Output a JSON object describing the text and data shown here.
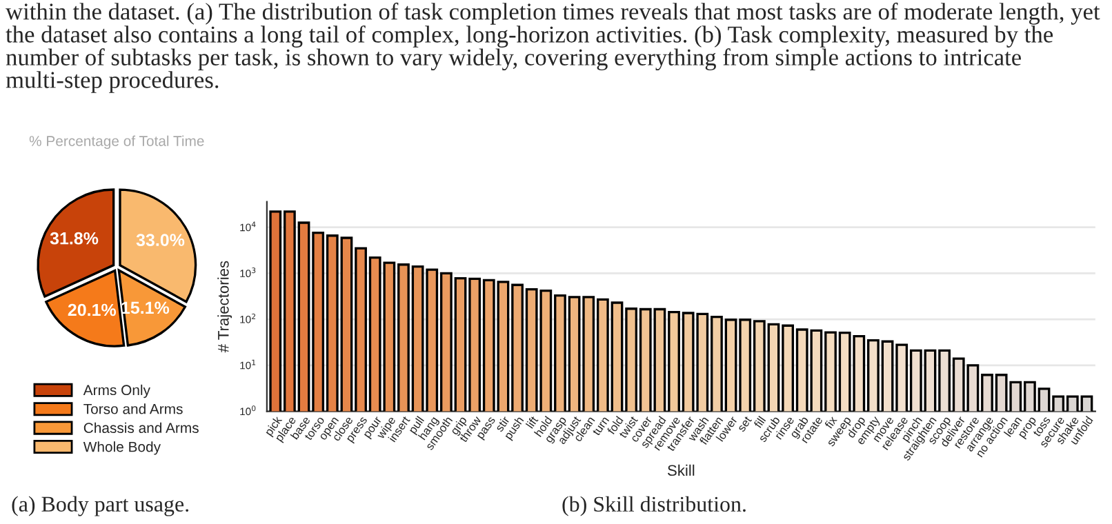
{
  "chart_data": [
    {
      "type": "pie",
      "title": "% Percentage of Total Time",
      "categories": [
        "Arms Only",
        "Torso and Arms",
        "Chassis and Arms",
        "Whole Body"
      ],
      "values": [
        31.8,
        20.1,
        15.1,
        33.0
      ],
      "colors": [
        "#c8430a",
        "#f57a1a",
        "#f89838",
        "#f9b96e"
      ],
      "value_labels": [
        "31.8%",
        "20.1%",
        "15.1%",
        "33.0%"
      ],
      "legend": "bottom",
      "annotations": [
        "within the dataset. (a) The distribution of task completion times reveals that most tasks are of moderate length, yet the dataset also contains a long tail of complex, long-horizon activities. (b) Task complexity, measured by the number of subtasks per task, is shown to vary widely, covering everything from simple actions to intricate multi-step procedures.",
        "(a) Body part usage."
      ]
    },
    {
      "type": "bar",
      "xlabel": "Skill",
      "ylabel": "# Trajectories",
      "log": true,
      "grid": "y",
      "categories": [
        "pick",
        "place",
        "base",
        "torso",
        "open",
        "close",
        "press",
        "pour",
        "wipe",
        "insert",
        "pull",
        "hang",
        "smooth",
        "grip",
        "throw",
        "pass",
        "stir",
        "push",
        "lift",
        "hold",
        "grasp",
        "adjust",
        "clean",
        "turn",
        "fold",
        "twist",
        "cover",
        "spread",
        "remove",
        "transfer",
        "wash",
        "flatten",
        "lower",
        "set",
        "fill",
        "scrub",
        "rinse",
        "grab",
        "rotate",
        "fix",
        "sweep",
        "drop",
        "empty",
        "move",
        "release",
        "pinch",
        "straighten",
        "scoop",
        "deliver",
        "restore",
        "arrange",
        "no action",
        "lean",
        "prop",
        "toss",
        "secure",
        "shake",
        "unfold"
      ],
      "values": [
        22000,
        22000,
        12600,
        7600,
        6600,
        5900,
        3500,
        2200,
        1700,
        1550,
        1400,
        1200,
        1000,
        780,
        760,
        710,
        650,
        560,
        450,
        420,
        330,
        305,
        305,
        270,
        230,
        170,
        166,
        166,
        144,
        137,
        131,
        113,
        98,
        98,
        91,
        78,
        73,
        60,
        57,
        52,
        51,
        43,
        35,
        33,
        28,
        21,
        21,
        21,
        14,
        10,
        6.2,
        6.2,
        4.3,
        4.3,
        3.1,
        2.1,
        2.1,
        2.1
      ],
      "colors": [
        "#e0733a",
        "#e2773d",
        "#e37b40",
        "#e47f43",
        "#e58346",
        "#e6874a",
        "#e7894d",
        "#e88c50",
        "#e89053",
        "#e89356",
        "#e89558",
        "#e9985c",
        "#ea9b5f",
        "#eb9e63",
        "#eca166",
        "#eda46a",
        "#eda76d",
        "#eeaa71",
        "#eead74",
        "#eeb078",
        "#eeb27c",
        "#efb57f",
        "#efb883",
        "#f0bb87",
        "#f0be8b",
        "#f0c18f",
        "#f1c393",
        "#f1c697",
        "#f1c89a",
        "#f2ca9e",
        "#f2cca1",
        "#f2cea5",
        "#f3d0a8",
        "#f3d2ac",
        "#f3d4b0",
        "#f4d6b3",
        "#f4d8b7",
        "#f4d9ba",
        "#f4dbbd",
        "#f4dcc0",
        "#f4ddc3",
        "#f4dec6",
        "#f3dfc9",
        "#f3e0cc",
        "#f3e1cf",
        "#f1e0d0",
        "#efdfd1",
        "#ecded2",
        "#eadcd2",
        "#e8dbd2",
        "#e6dad2",
        "#e4d9d2",
        "#e2d8d2",
        "#e0d8d3",
        "#ded7d3",
        "#dcd7d3",
        "#dad6d3",
        "#d9d6d3"
      ],
      "ylim": [
        1,
        36000
      ],
      "yticks": [
        {
          "value": 1,
          "label": "10$^{0}$"
        },
        {
          "value": 10,
          "label": "10$^{1}$"
        },
        {
          "value": 100,
          "label": "10$^{2}$"
        },
        {
          "value": 1000,
          "label": "10$^{3}$"
        },
        {
          "value": 10000,
          "label": "10$^{4}$"
        }
      ],
      "annotations": [
        "(b) Skill distribution."
      ]
    }
  ]
}
